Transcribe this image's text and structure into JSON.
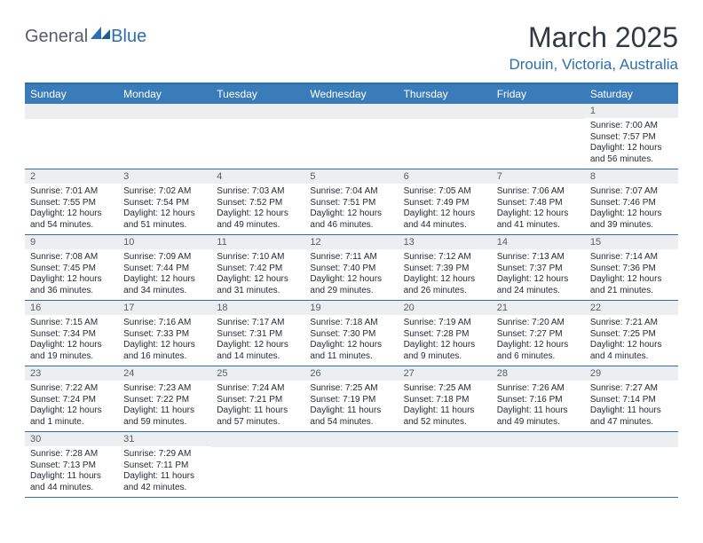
{
  "logo": {
    "text1": "General",
    "text2": "Blue"
  },
  "title": "March 2025",
  "location": "Drouin, Victoria, Australia",
  "colors": {
    "accent": "#2d6fae",
    "header_bg": "#3a7cb9",
    "daynum_bg": "#edeeef",
    "text": "#262b33",
    "muted": "#586069"
  },
  "day_names": [
    "Sunday",
    "Monday",
    "Tuesday",
    "Wednesday",
    "Thursday",
    "Friday",
    "Saturday"
  ],
  "weeks": [
    [
      null,
      null,
      null,
      null,
      null,
      null,
      {
        "n": "1",
        "sr": "7:00 AM",
        "ss": "7:57 PM",
        "dl": "12 hours and 56 minutes."
      }
    ],
    [
      {
        "n": "2",
        "sr": "7:01 AM",
        "ss": "7:55 PM",
        "dl": "12 hours and 54 minutes."
      },
      {
        "n": "3",
        "sr": "7:02 AM",
        "ss": "7:54 PM",
        "dl": "12 hours and 51 minutes."
      },
      {
        "n": "4",
        "sr": "7:03 AM",
        "ss": "7:52 PM",
        "dl": "12 hours and 49 minutes."
      },
      {
        "n": "5",
        "sr": "7:04 AM",
        "ss": "7:51 PM",
        "dl": "12 hours and 46 minutes."
      },
      {
        "n": "6",
        "sr": "7:05 AM",
        "ss": "7:49 PM",
        "dl": "12 hours and 44 minutes."
      },
      {
        "n": "7",
        "sr": "7:06 AM",
        "ss": "7:48 PM",
        "dl": "12 hours and 41 minutes."
      },
      {
        "n": "8",
        "sr": "7:07 AM",
        "ss": "7:46 PM",
        "dl": "12 hours and 39 minutes."
      }
    ],
    [
      {
        "n": "9",
        "sr": "7:08 AM",
        "ss": "7:45 PM",
        "dl": "12 hours and 36 minutes."
      },
      {
        "n": "10",
        "sr": "7:09 AM",
        "ss": "7:44 PM",
        "dl": "12 hours and 34 minutes."
      },
      {
        "n": "11",
        "sr": "7:10 AM",
        "ss": "7:42 PM",
        "dl": "12 hours and 31 minutes."
      },
      {
        "n": "12",
        "sr": "7:11 AM",
        "ss": "7:40 PM",
        "dl": "12 hours and 29 minutes."
      },
      {
        "n": "13",
        "sr": "7:12 AM",
        "ss": "7:39 PM",
        "dl": "12 hours and 26 minutes."
      },
      {
        "n": "14",
        "sr": "7:13 AM",
        "ss": "7:37 PM",
        "dl": "12 hours and 24 minutes."
      },
      {
        "n": "15",
        "sr": "7:14 AM",
        "ss": "7:36 PM",
        "dl": "12 hours and 21 minutes."
      }
    ],
    [
      {
        "n": "16",
        "sr": "7:15 AM",
        "ss": "7:34 PM",
        "dl": "12 hours and 19 minutes."
      },
      {
        "n": "17",
        "sr": "7:16 AM",
        "ss": "7:33 PM",
        "dl": "12 hours and 16 minutes."
      },
      {
        "n": "18",
        "sr": "7:17 AM",
        "ss": "7:31 PM",
        "dl": "12 hours and 14 minutes."
      },
      {
        "n": "19",
        "sr": "7:18 AM",
        "ss": "7:30 PM",
        "dl": "12 hours and 11 minutes."
      },
      {
        "n": "20",
        "sr": "7:19 AM",
        "ss": "7:28 PM",
        "dl": "12 hours and 9 minutes."
      },
      {
        "n": "21",
        "sr": "7:20 AM",
        "ss": "7:27 PM",
        "dl": "12 hours and 6 minutes."
      },
      {
        "n": "22",
        "sr": "7:21 AM",
        "ss": "7:25 PM",
        "dl": "12 hours and 4 minutes."
      }
    ],
    [
      {
        "n": "23",
        "sr": "7:22 AM",
        "ss": "7:24 PM",
        "dl": "12 hours and 1 minute."
      },
      {
        "n": "24",
        "sr": "7:23 AM",
        "ss": "7:22 PM",
        "dl": "11 hours and 59 minutes."
      },
      {
        "n": "25",
        "sr": "7:24 AM",
        "ss": "7:21 PM",
        "dl": "11 hours and 57 minutes."
      },
      {
        "n": "26",
        "sr": "7:25 AM",
        "ss": "7:19 PM",
        "dl": "11 hours and 54 minutes."
      },
      {
        "n": "27",
        "sr": "7:25 AM",
        "ss": "7:18 PM",
        "dl": "11 hours and 52 minutes."
      },
      {
        "n": "28",
        "sr": "7:26 AM",
        "ss": "7:16 PM",
        "dl": "11 hours and 49 minutes."
      },
      {
        "n": "29",
        "sr": "7:27 AM",
        "ss": "7:14 PM",
        "dl": "11 hours and 47 minutes."
      }
    ],
    [
      {
        "n": "30",
        "sr": "7:28 AM",
        "ss": "7:13 PM",
        "dl": "11 hours and 44 minutes."
      },
      {
        "n": "31",
        "sr": "7:29 AM",
        "ss": "7:11 PM",
        "dl": "11 hours and 42 minutes."
      },
      null,
      null,
      null,
      null,
      null
    ]
  ],
  "labels": {
    "sunrise": "Sunrise: ",
    "sunset": "Sunset: ",
    "daylight": "Daylight: "
  }
}
